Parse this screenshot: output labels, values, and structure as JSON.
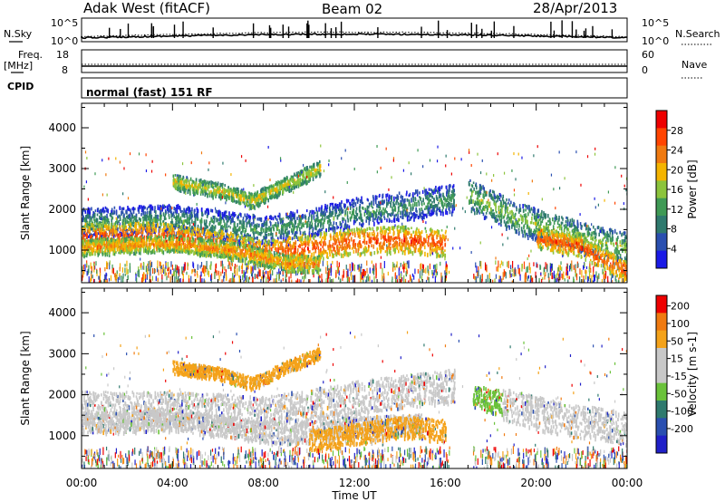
{
  "header": {
    "station": "Adak West (fitACF)",
    "beam": "Beam 02",
    "date": "28/Apr/2013"
  },
  "panels": {
    "nsky_label": "N.Sky",
    "nsky_ticks": [
      "10^5",
      "10^0"
    ],
    "nsearch_label": "N.Search",
    "nsearch_ticks": [
      "10^5",
      "10^0"
    ],
    "freq_label_1": "Freq.",
    "freq_label_2": "[MHz]",
    "freq_ticks": [
      "18",
      "8"
    ],
    "nave_label": "Nave",
    "nave_ticks": [
      "60",
      "0"
    ],
    "cpid_label": "CPID",
    "cpid_text": "normal (fast) 151 RF"
  },
  "colors": {
    "power": [
      "#1a1ae6",
      "#2a4fb0",
      "#2f7a6e",
      "#3f9a55",
      "#8cc43c",
      "#f4b400",
      "#f07a10",
      "#ff4400",
      "#ee0000"
    ],
    "velocity": [
      "#2020c8",
      "#2a4fb0",
      "#2f7a6e",
      "#6ac23a",
      "#c8c8c8",
      "#c8c8c8",
      "#f4a21a",
      "#f07a10",
      "#ee0000"
    ]
  },
  "chart_data": [
    {
      "type": "heatmap",
      "title": "Power",
      "ylabel": "Slant Range [km]",
      "xlabel": "Time UT",
      "x_ticks": [
        "00:00",
        "04:00",
        "08:00",
        "12:00",
        "16:00",
        "20:00",
        "00:00"
      ],
      "y_ticks": [
        1000,
        2000,
        3000,
        4000
      ],
      "ylim": [
        200,
        4600
      ],
      "colorbar_label": "Power [dB]",
      "colorbar_ticks": [
        28,
        24,
        20,
        16,
        12,
        8,
        4
      ],
      "bands": [
        {
          "x": [
            0,
            4,
            8,
            10,
            12,
            14,
            16.4
          ],
          "y": [
            1700,
            1800,
            1500,
            1700,
            1950,
            2100,
            2300
          ],
          "width": 350,
          "level": 3
        },
        {
          "x": [
            0,
            3,
            6,
            8,
            10,
            12,
            14,
            16
          ],
          "y": [
            1350,
            1400,
            1200,
            950,
            1100,
            1250,
            1300,
            1200
          ],
          "width": 320,
          "level": 7
        },
        {
          "x": [
            0,
            4,
            7,
            9,
            10.5
          ],
          "y": [
            1100,
            1200,
            1000,
            700,
            700
          ],
          "width": 200,
          "level": 6
        },
        {
          "x": [
            4,
            6,
            7.5,
            9,
            10.5
          ],
          "y": [
            2700,
            2500,
            2250,
            2650,
            3050
          ],
          "width": 180,
          "level": 5
        },
        {
          "x": [
            17,
            19,
            21,
            22.5,
            24
          ],
          "y": [
            2400,
            1850,
            1500,
            1250,
            1100
          ],
          "width": 380,
          "level": 4
        },
        {
          "x": [
            20,
            22,
            24
          ],
          "y": [
            1350,
            1100,
            500
          ],
          "width": 250,
          "level": 7
        }
      ]
    },
    {
      "type": "heatmap",
      "title": "Velocity",
      "ylabel": "Slant Range [km]",
      "xlabel": "Time UT",
      "x_ticks": [
        "00:00",
        "04:00",
        "08:00",
        "12:00",
        "16:00",
        "20:00",
        "00:00"
      ],
      "y_ticks": [
        1000,
        2000,
        3000,
        4000
      ],
      "ylim": [
        200,
        4600
      ],
      "colorbar_label": "Velocity [m s-1]",
      "colorbar_ticks": [
        200,
        100,
        50,
        15,
        -15,
        -50,
        -100,
        -200
      ],
      "bands": [
        {
          "x": [
            0,
            4,
            8,
            10,
            12,
            14,
            16.4
          ],
          "y": [
            1700,
            1700,
            1600,
            1750,
            1950,
            2100,
            2250
          ],
          "width": 400,
          "level": 4
        },
        {
          "x": [
            0,
            4,
            7,
            9,
            11,
            13,
            15
          ],
          "y": [
            1350,
            1400,
            1200,
            1050,
            1200,
            1250,
            1300
          ],
          "width": 260,
          "level": 4
        },
        {
          "x": [
            10,
            12,
            14,
            16
          ],
          "y": [
            900,
            1050,
            1250,
            1150
          ],
          "width": 260,
          "level": 6
        },
        {
          "x": [
            4,
            6,
            7.5,
            9,
            10.5
          ],
          "y": [
            2700,
            2550,
            2300,
            2700,
            3050
          ],
          "width": 150,
          "level": 6
        },
        {
          "x": [
            17.2,
            18.5
          ],
          "y": [
            1950,
            1850
          ],
          "width": 300,
          "level": 3
        },
        {
          "x": [
            18.5,
            21,
            24
          ],
          "y": [
            1800,
            1450,
            1200
          ],
          "width": 400,
          "level": 4
        }
      ]
    }
  ]
}
